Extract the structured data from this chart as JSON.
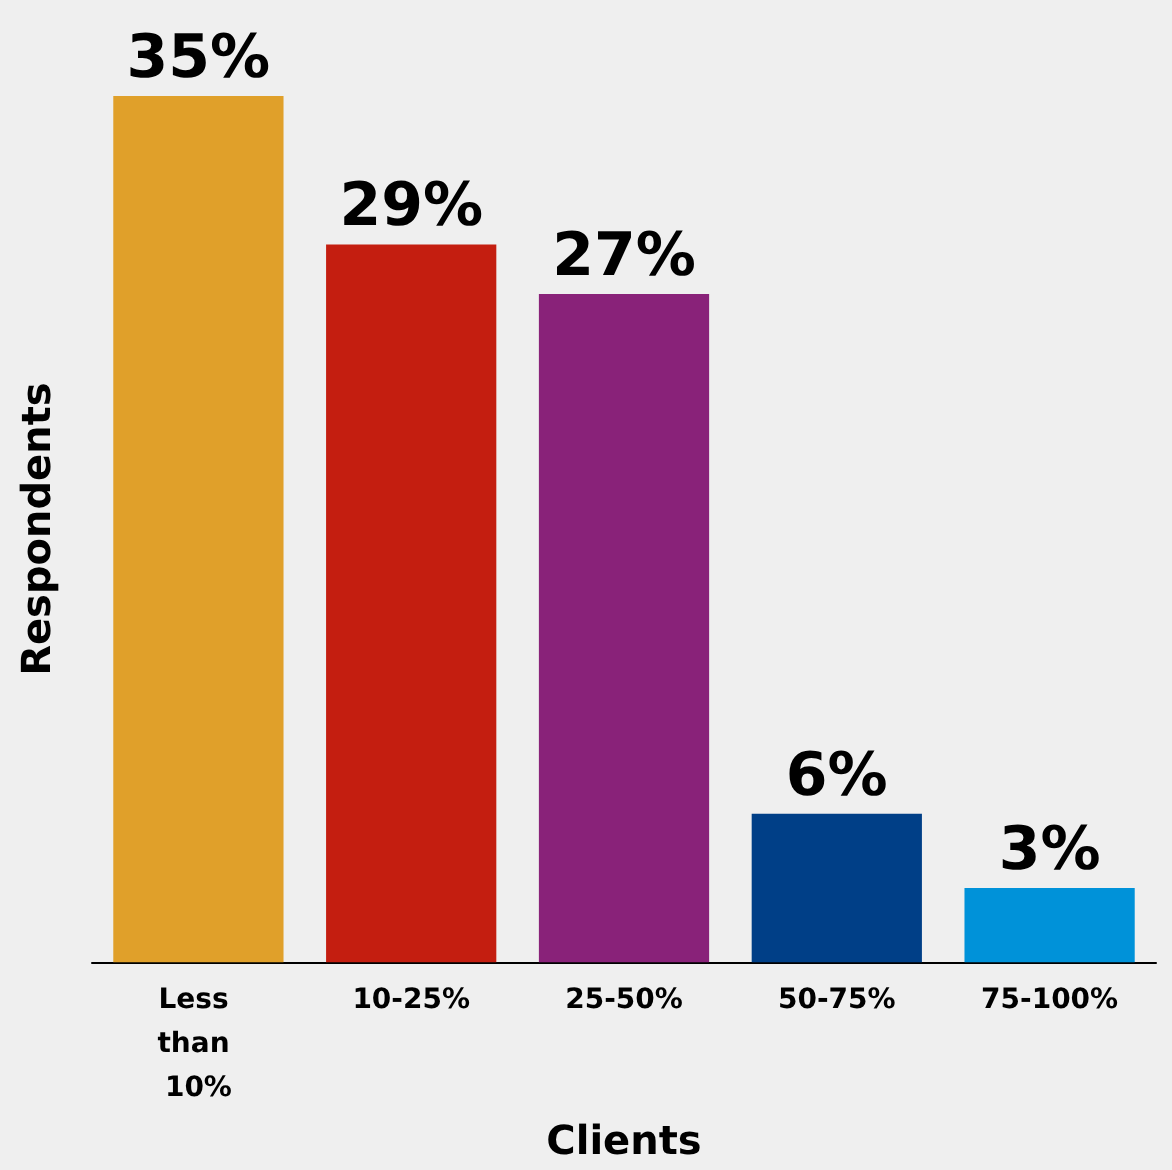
{
  "chart_data": {
    "type": "bar",
    "xlabel": "Clients",
    "ylabel": "Respondents",
    "categories": [
      "Less than 10%",
      "10-25%",
      "25-50%",
      "50-75%",
      "75-100%"
    ],
    "values": [
      35,
      29,
      27,
      6,
      3
    ],
    "value_labels": [
      "35%",
      "29%",
      "27%",
      "6%",
      "3%"
    ],
    "colors": [
      "#e0a02a",
      "#c41e10",
      "#892279",
      "#003f87",
      "#0092d9"
    ],
    "tick_labels": "x"
  }
}
